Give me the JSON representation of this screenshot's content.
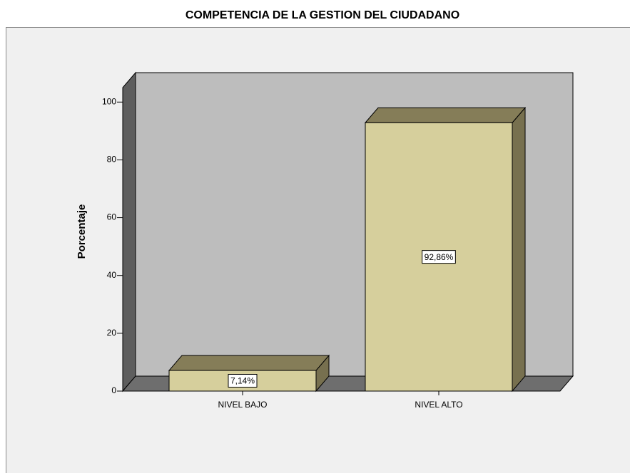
{
  "chart_data": {
    "type": "bar3d",
    "title": "COMPETENCIA DE LA GESTION DEL CIUDADANO",
    "y_label": "Porcentaje",
    "categories": [
      "NIVEL BAJO",
      "NIVEL ALTO"
    ],
    "values": [
      7.14,
      92.86
    ],
    "value_labels": [
      "7,14%",
      "92,86%"
    ],
    "color": "#d6cf9c",
    "ylim": [
      0,
      105
    ],
    "yticks": [
      0,
      20,
      40,
      60,
      80,
      100
    ]
  }
}
